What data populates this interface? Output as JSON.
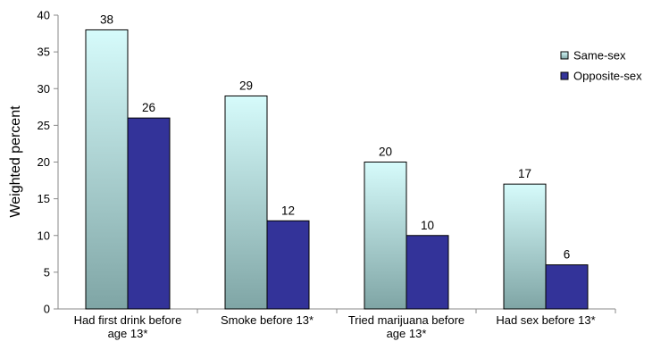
{
  "chart_data": {
    "type": "bar",
    "title": "",
    "xlabel": "",
    "ylabel": "Weighted percent",
    "ylim": [
      0,
      40
    ],
    "yticks": [
      0,
      5,
      10,
      15,
      20,
      25,
      30,
      35,
      40
    ],
    "grid": false,
    "legend_position": "right",
    "categories": [
      [
        "Had first drink before",
        "age 13*"
      ],
      [
        "Smoke before 13*"
      ],
      [
        "Tried marijuana before",
        "age 13*"
      ],
      [
        "Had sex before 13*"
      ]
    ],
    "series": [
      {
        "name": "Same-sex",
        "values": [
          38,
          29,
          20,
          17
        ],
        "color_top": "#d6fbfb",
        "color_bottom": "#7fa5a5",
        "stroke": "#000000"
      },
      {
        "name": "Opposite-sex",
        "values": [
          26,
          12,
          10,
          6
        ],
        "color": "#333399",
        "stroke": "#000000"
      }
    ]
  }
}
